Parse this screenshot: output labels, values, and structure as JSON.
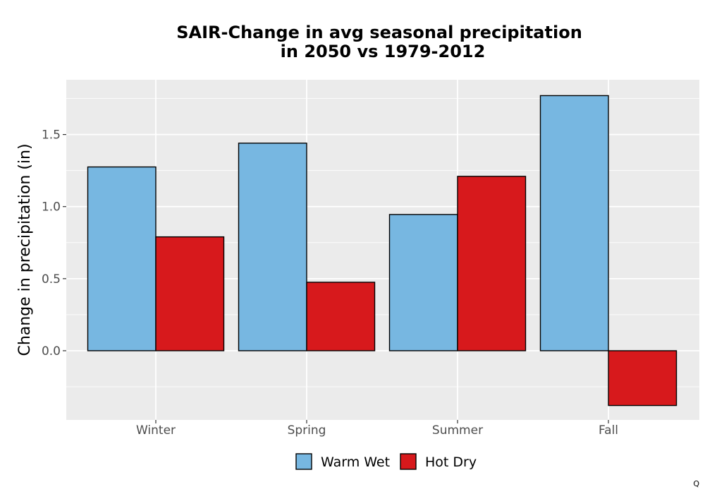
{
  "chart_data": {
    "type": "bar",
    "title_lines": [
      "SAIR-Change in avg seasonal precipitation",
      "in 2050 vs 1979-2012"
    ],
    "xlabel": "",
    "ylabel": "Change in precipitation (in)",
    "categories": [
      "Winter",
      "Spring",
      "Summer",
      "Fall"
    ],
    "series": [
      {
        "name": "Warm Wet",
        "color": "#77b7e1",
        "values": [
          1.275,
          1.44,
          0.945,
          1.77
        ]
      },
      {
        "name": "Hot Dry",
        "color": "#d7191c",
        "values": [
          0.79,
          0.475,
          1.21,
          -0.38
        ]
      }
    ],
    "ylim": [
      -0.48,
      1.88
    ],
    "yticks": [
      0.0,
      0.5,
      1.0,
      1.5
    ],
    "ytick_labels": [
      "0.0",
      "0.5",
      "1.0",
      "1.5"
    ],
    "grid": true,
    "legend_position": "bottom",
    "colors": {
      "panel_background": "#ebebeb",
      "grid_major": "#ffffff",
      "bar_outline": "#000000"
    }
  },
  "footer": {
    "corner_mark": "Q"
  }
}
